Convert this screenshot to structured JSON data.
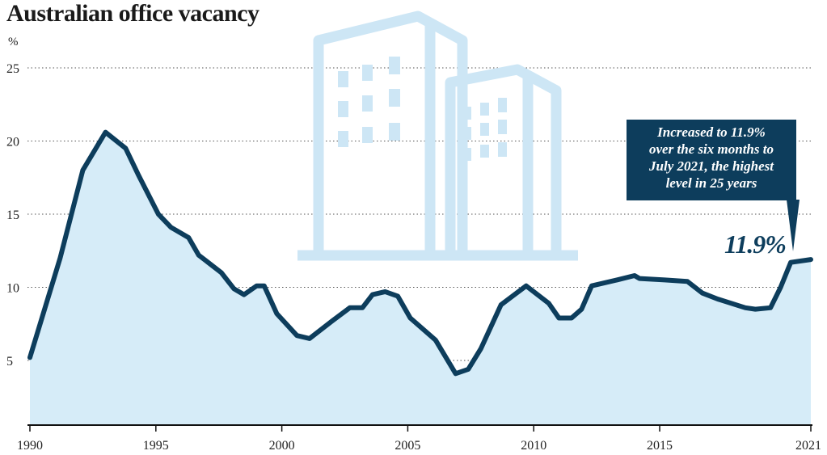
{
  "title": "Australian office vacancy",
  "unit_label": "%",
  "annotation": {
    "lines": [
      "Increased to 11.9%",
      "over the six months to",
      "July 2021, the highest",
      "level in 25 years"
    ],
    "value_label": "11.9%"
  },
  "illustration": {
    "icon": "office-buildings-icon"
  },
  "colors": {
    "line": "#0d3d5c",
    "fill": "#d6ecf8",
    "callout": "#0d3d5c",
    "illustration": "#cde6f5"
  },
  "chart_data": {
    "type": "area",
    "title": "Australian office vacancy",
    "ylabel": "%",
    "xlabel": "",
    "ylim": [
      0,
      25
    ],
    "xlim": [
      1990,
      2021
    ],
    "y_ticks": [
      5,
      10,
      15,
      20,
      25
    ],
    "x_ticks": [
      1990,
      1995,
      2000,
      2005,
      2010,
      2015,
      2021
    ],
    "grid": "horizontal dotted",
    "legend": "none",
    "x": [
      1990.0,
      1991.2,
      1992.1,
      1993.0,
      1993.8,
      1994.3,
      1995.1,
      1995.6,
      1996.3,
      1996.7,
      1997.0,
      1997.6,
      1998.1,
      1998.5,
      1999.0,
      1999.3,
      1999.8,
      2000.6,
      2001.1,
      2002.0,
      2002.7,
      2003.2,
      2003.6,
      2004.1,
      2004.6,
      2005.1,
      2006.1,
      2006.9,
      2007.4,
      2007.9,
      2008.7,
      2009.7,
      2010.6,
      2011.0,
      2011.5,
      2011.9,
      2012.3,
      2013.3,
      2014.0,
      2014.2,
      2015.2,
      2016.1,
      2016.7,
      2017.3,
      2018.4,
      2018.8,
      2019.4,
      2019.8,
      2020.2,
      2021.0
    ],
    "values": [
      5.2,
      12.0,
      18.0,
      20.6,
      19.5,
      17.7,
      15.0,
      14.1,
      13.4,
      12.2,
      11.8,
      11.0,
      9.9,
      9.5,
      10.1,
      10.1,
      8.2,
      6.7,
      6.5,
      7.7,
      8.6,
      8.6,
      9.5,
      9.7,
      9.4,
      7.9,
      6.4,
      4.1,
      4.4,
      5.8,
      8.8,
      10.1,
      8.9,
      7.9,
      7.9,
      8.5,
      10.1,
      10.5,
      10.8,
      10.6,
      10.5,
      10.4,
      9.6,
      9.2,
      8.6,
      8.5,
      8.6,
      10.0,
      11.7,
      11.9
    ]
  }
}
